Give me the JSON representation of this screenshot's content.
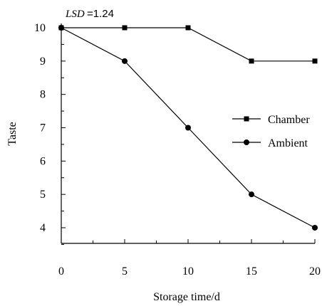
{
  "chart_data": {
    "type": "line",
    "xlabel": "Storage time/d",
    "ylabel": "Taste",
    "x": [
      0,
      5,
      10,
      15,
      20
    ],
    "xlim": [
      0,
      20
    ],
    "ylim": [
      3.5,
      10.2
    ],
    "xticks": [
      0,
      5,
      10,
      15,
      20
    ],
    "yticks": [
      4,
      5,
      6,
      7,
      8,
      9,
      10
    ],
    "grid": false,
    "legend_position": "right",
    "annotation": {
      "lsd_label": "LSD",
      "lsd_value": "=1.24"
    },
    "series": [
      {
        "name": "Chamber",
        "marker": "square",
        "color": "#000000",
        "values": [
          10,
          10,
          10,
          9,
          9
        ]
      },
      {
        "name": "Ambient",
        "marker": "circle",
        "color": "#000000",
        "values": [
          10,
          9,
          7,
          5,
          4
        ]
      }
    ]
  }
}
